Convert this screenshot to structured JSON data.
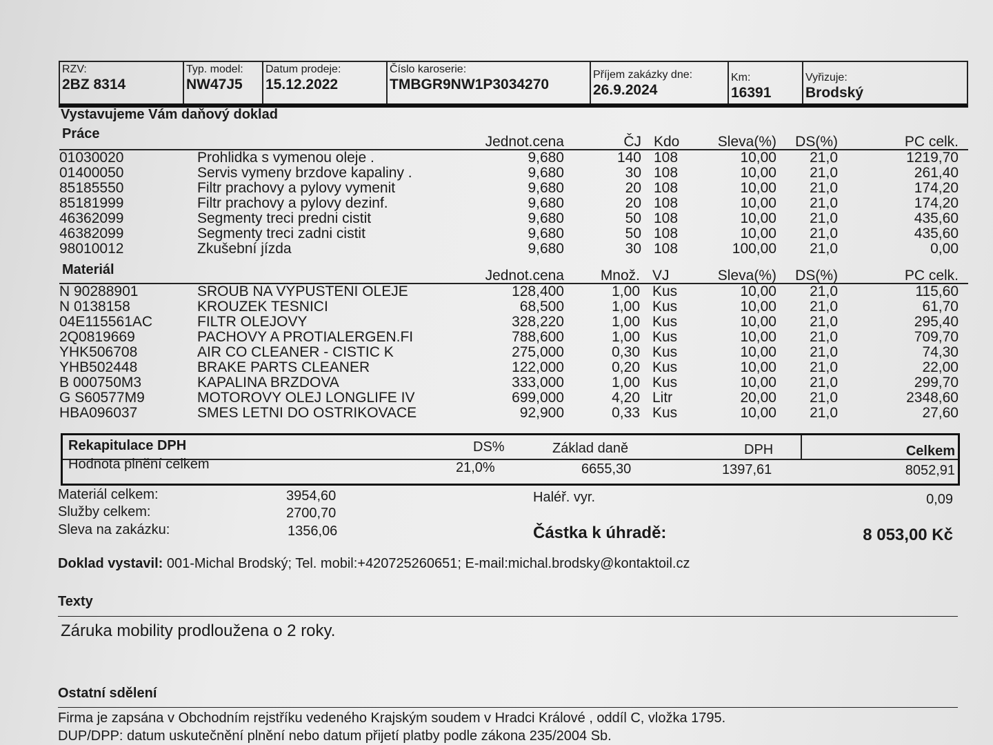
{
  "header": {
    "rzv": {
      "label": "RZV:",
      "value": "2BZ 8314"
    },
    "typ_model": {
      "label": "Typ. model:",
      "value": "NW47J5"
    },
    "datum_prodeje": {
      "label": "Datum prodeje:",
      "value": "15.12.2022"
    },
    "cislo_karoserie": {
      "label": "Číslo karoserie:",
      "value": "TMBGR9NW1P3034270"
    },
    "prijem": {
      "label": "Příjem zakázky dne:",
      "value": "26.9.2024"
    },
    "km": {
      "label": "Km:",
      "value": "16391"
    },
    "vyrizuje": {
      "label": "Vyřizuje:",
      "value": "Brodský"
    }
  },
  "doc_title": "Vystavujeme Vám daňový doklad",
  "prace": {
    "title": "Práce",
    "columns": [
      "Jednot.cena",
      "ČJ",
      "Kdo",
      "Sleva(%)",
      "DS(%)",
      "PC celk."
    ],
    "rows": [
      [
        "01030020",
        "Prohlidka s vymenou oleje .",
        "9,680",
        "140",
        "108",
        "10,00",
        "21,0",
        "1219,70"
      ],
      [
        "01400050",
        "Servis vymeny brzdove kapaliny .",
        "9,680",
        "30",
        "108",
        "10,00",
        "21,0",
        "261,40"
      ],
      [
        "85185550",
        "Filtr prachovy a pylovy vymenit",
        "9,680",
        "20",
        "108",
        "10,00",
        "21,0",
        "174,20"
      ],
      [
        "85181999",
        "Filtr prachovy a pylovy dezinf.",
        "9,680",
        "20",
        "108",
        "10,00",
        "21,0",
        "174,20"
      ],
      [
        "46362099",
        "Segmenty treci predni cistit",
        "9,680",
        "50",
        "108",
        "10,00",
        "21,0",
        "435,60"
      ],
      [
        "46382099",
        "Segmenty treci zadni cistit",
        "9,680",
        "50",
        "108",
        "10,00",
        "21,0",
        "435,60"
      ],
      [
        "98010012",
        "Zkušební jízda",
        "9,680",
        "30",
        "108",
        "100,00",
        "21,0",
        "0,00"
      ]
    ]
  },
  "material": {
    "title": "Materiál",
    "columns": [
      "Jednot.cena",
      "Množ.",
      "VJ",
      "Sleva(%)",
      "DS(%)",
      "PC celk."
    ],
    "rows": [
      [
        "N  90288901",
        "SROUB NA VYPUSTENI OLEJE",
        "128,400",
        "1,00",
        "Kus",
        "10,00",
        "21,0",
        "115,60"
      ],
      [
        "N  0138158",
        "KROUZEK TESNICI",
        "68,500",
        "1,00",
        "Kus",
        "10,00",
        "21,0",
        "61,70"
      ],
      [
        "04E115561AC",
        "FILTR OLEJOVY",
        "328,220",
        "1,00",
        "Kus",
        "10,00",
        "21,0",
        "295,40"
      ],
      [
        "2Q0819669",
        "PACHOVY A PROTIALERGEN.FI",
        "788,600",
        "1,00",
        "Kus",
        "10,00",
        "21,0",
        "709,70"
      ],
      [
        "YHK506708",
        "AIR CO CLEANER - CISTIC K",
        "275,000",
        "0,30",
        "Kus",
        "10,00",
        "21,0",
        "74,30"
      ],
      [
        "YHB502448",
        "BRAKE PARTS CLEANER",
        "122,000",
        "0,20",
        "Kus",
        "10,00",
        "21,0",
        "22,00"
      ],
      [
        "B  000750M3",
        "KAPALINA BRZDOVA",
        "333,000",
        "1,00",
        "Kus",
        "10,00",
        "21,0",
        "299,70"
      ],
      [
        "G  S60577M9",
        "MOTOROVY OLEJ LONGLIFE IV",
        "699,000",
        "4,20",
        "Litr",
        "20,00",
        "21,0",
        "2348,60"
      ],
      [
        "HBA096037",
        "SMES LETNI DO OSTRIKOVACE",
        "92,900",
        "0,33",
        "Kus",
        "10,00",
        "21,0",
        "27,60"
      ]
    ]
  },
  "recap": {
    "title": "Rekapitulace DPH",
    "ds_label": "DS%",
    "zaklad_label": "Základ daně",
    "dph_label": "DPH",
    "celkem_label": "Celkem",
    "row_label": "Hodnota plnění celkem",
    "ds": "21,0%",
    "zaklad": "6655,30",
    "dph": "1397,61",
    "celkem": "8052,91"
  },
  "totals": {
    "material_label": "Materiál celkem:",
    "material": "3954,60",
    "sluzby_label": "Služby celkem:",
    "sluzby": "2700,70",
    "sleva_label": "Sleva na zakázku:",
    "sleva": "1356,06",
    "haler_label": "Haléř. vyr.",
    "haler": "0,09",
    "castka_label": "Částka k úhradě:",
    "castka": "8 053,00 Kč"
  },
  "issuer": {
    "label": "Doklad vystavil:",
    "value": "001-Michal Brodský;  Tel. mobil:+420725260651;  E-mail:michal.brodsky@kontaktoil.cz"
  },
  "texty": {
    "title": "Texty",
    "text": "Záruka mobility prodloužena o 2 roky."
  },
  "ostatni": {
    "title": "Ostatní sdělení",
    "lines": [
      "Firma je zapsána v Obchodním rejstříku vedeného Krajským soudem v Hradci Králové , oddíl C, vložka 1795.",
      "DUP/DPP: datum uskutečnění plnění nebo datum přijetí platby podle zákona 235/2004 Sb."
    ]
  }
}
